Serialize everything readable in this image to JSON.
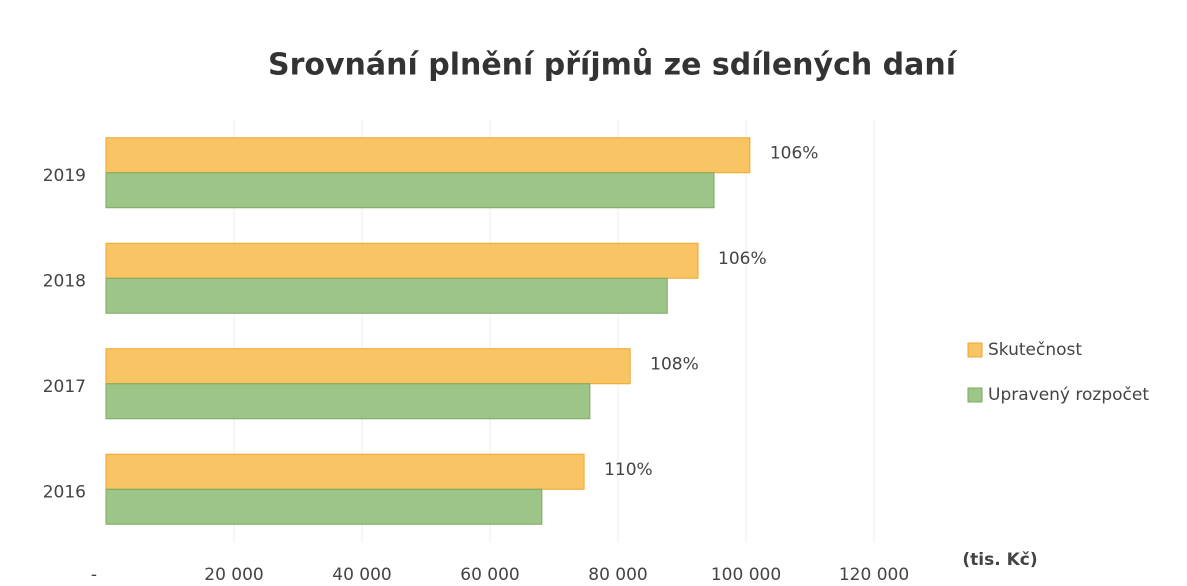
{
  "chart_data": {
    "type": "hbar",
    "title": "Srovnání plnění příjmů ze sdílených daní",
    "x_label": "(tis. Kč)",
    "categories": [
      "2019",
      "2018",
      "2017",
      "2016"
    ],
    "series": [
      {
        "name": "Skutečnost",
        "color": "#f9c463",
        "values": [
          100600,
          92500,
          81900,
          74700
        ]
      },
      {
        "name": "Upravený rozpočet",
        "color": "#9dc587",
        "values": [
          95000,
          87700,
          75600,
          68100
        ]
      }
    ],
    "annotations": [
      "106%",
      "106%",
      "108%",
      "110%"
    ],
    "xlim": [
      0,
      120000
    ],
    "xticks": [
      {
        "value": 0,
        "label": "-"
      },
      {
        "value": 20000,
        "label": "20 000"
      },
      {
        "value": 40000,
        "label": "40 000"
      },
      {
        "value": 60000,
        "label": "60 000"
      },
      {
        "value": 80000,
        "label": "80 000"
      },
      {
        "value": 100000,
        "label": "100 000"
      },
      {
        "value": 120000,
        "label": "120 000"
      }
    ],
    "grid": true,
    "legend": "right"
  }
}
